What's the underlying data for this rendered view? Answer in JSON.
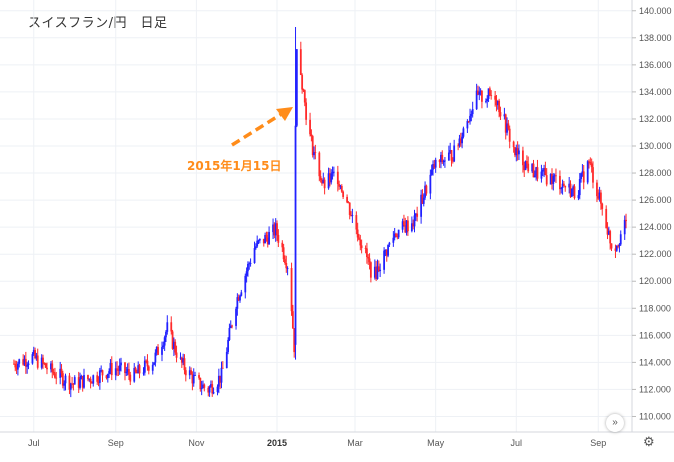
{
  "chart_data": {
    "type": "candlestick",
    "title": "スイスフラン/円　日足",
    "ylim": [
      109,
      140.5
    ],
    "y_ticks": [
      "140.000",
      "138.000",
      "136.000",
      "134.000",
      "132.000",
      "130.000",
      "128.000",
      "126.000",
      "124.000",
      "122.000",
      "120.000",
      "118.000",
      "116.000",
      "114.000",
      "112.000",
      "110.000"
    ],
    "x_ticks": [
      {
        "label": "Jul",
        "bold": false
      },
      {
        "label": "Sep",
        "bold": false
      },
      {
        "label": "Nov",
        "bold": false
      },
      {
        "label": "2015",
        "bold": true
      },
      {
        "label": "Mar",
        "bold": false
      },
      {
        "label": "May",
        "bold": false
      },
      {
        "label": "Jul",
        "bold": false
      },
      {
        "label": "Sep",
        "bold": false
      }
    ],
    "colors": {
      "up": "#2121ff",
      "down": "#ff2a2a",
      "grid": "#eef1f5",
      "annotation": "#ff8c1a"
    },
    "annotation": {
      "text": "2015年1月15日",
      "arrow": true
    },
    "price_path": [
      [
        "2014-06-16",
        113.9
      ],
      [
        "2014-06-30",
        114.4
      ],
      [
        "2014-07-15",
        113.3
      ],
      [
        "2014-07-31",
        112.4
      ],
      [
        "2014-08-15",
        112.9
      ],
      [
        "2014-08-31",
        113.6
      ],
      [
        "2014-09-15",
        113.0
      ],
      [
        "2014-09-30",
        114.2
      ],
      [
        "2014-10-10",
        116.5
      ],
      [
        "2014-10-20",
        114.0
      ],
      [
        "2014-11-01",
        112.5
      ],
      [
        "2014-11-10",
        112.0
      ],
      [
        "2014-11-20",
        113.0
      ],
      [
        "2014-12-01",
        118.5
      ],
      [
        "2014-12-15",
        122.5
      ],
      [
        "2014-12-31",
        123.8
      ],
      [
        "2015-01-10",
        121.0
      ],
      [
        "2015-01-14",
        115.2
      ],
      [
        "2015-01-15",
        138.5
      ],
      [
        "2015-01-25",
        131.0
      ],
      [
        "2015-02-05",
        127.0
      ],
      [
        "2015-02-15",
        128.0
      ],
      [
        "2015-02-28",
        124.5
      ],
      [
        "2015-03-15",
        120.3
      ],
      [
        "2015-03-31",
        123.5
      ],
      [
        "2015-04-15",
        124.5
      ],
      [
        "2015-04-30",
        128.5
      ],
      [
        "2015-05-15",
        129.5
      ],
      [
        "2015-05-31",
        133.5
      ],
      [
        "2015-06-15",
        133.8
      ],
      [
        "2015-06-30",
        129.5
      ],
      [
        "2015-07-15",
        128.0
      ],
      [
        "2015-07-31",
        127.5
      ],
      [
        "2015-08-15",
        126.5
      ],
      [
        "2015-08-25",
        128.8
      ],
      [
        "2015-09-05",
        125.0
      ],
      [
        "2015-09-12",
        122.3
      ],
      [
        "2015-09-22",
        124.2
      ]
    ]
  }
}
